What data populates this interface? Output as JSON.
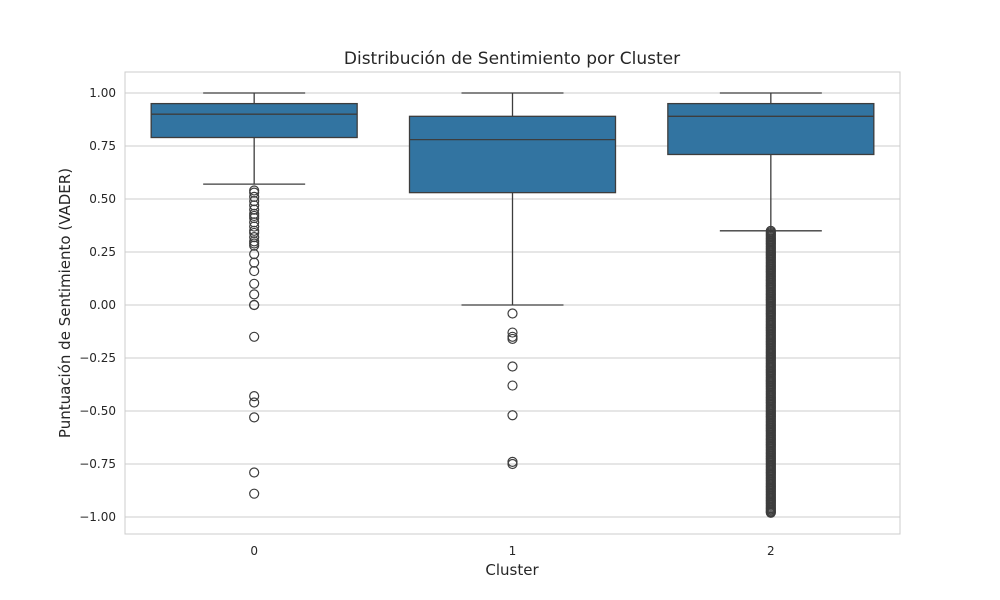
{
  "chart_data": {
    "type": "box",
    "title": "Distribución de Sentimiento por Cluster",
    "xlabel": "Cluster",
    "ylabel": "Puntuación de Sentimiento (VADER)",
    "categories": [
      "0",
      "1",
      "2"
    ],
    "ylim": [
      -1.08,
      1.1
    ],
    "yticks": [
      1.0,
      0.75,
      0.5,
      0.25,
      0.0,
      -0.25,
      -0.5,
      -0.75,
      -1.0
    ],
    "ytick_labels": [
      "1.00",
      "0.75",
      "0.50",
      "0.25",
      "0.00",
      "−0.25",
      "−0.50",
      "−0.75",
      "−1.00"
    ],
    "grid": true,
    "box_color": "#3274a1",
    "edge_color": "#3d3d3d",
    "boxes": [
      {
        "category": "0",
        "whisker_low": 0.57,
        "q1": 0.79,
        "median": 0.9,
        "q3": 0.95,
        "whisker_high": 1.0,
        "outliers": [
          0.54,
          0.53,
          0.51,
          0.49,
          0.47,
          0.45,
          0.43,
          0.42,
          0.41,
          0.39,
          0.37,
          0.35,
          0.34,
          0.32,
          0.3,
          0.29,
          0.28,
          0.24,
          0.2,
          0.16,
          0.1,
          0.05,
          0.0,
          0.0,
          -0.15,
          -0.43,
          -0.46,
          -0.53,
          -0.79,
          -0.89
        ]
      },
      {
        "category": "1",
        "whisker_low": 0.0,
        "q1": 0.53,
        "median": 0.78,
        "q3": 0.89,
        "whisker_high": 1.0,
        "outliers": [
          -0.04,
          -0.13,
          -0.15,
          -0.16,
          -0.29,
          -0.38,
          -0.52,
          -0.74,
          -0.75
        ]
      },
      {
        "category": "2",
        "whisker_low": 0.35,
        "q1": 0.71,
        "median": 0.89,
        "q3": 0.95,
        "whisker_high": 1.0,
        "outliers_dense_range": [
          -0.98,
          0.35
        ]
      }
    ]
  }
}
